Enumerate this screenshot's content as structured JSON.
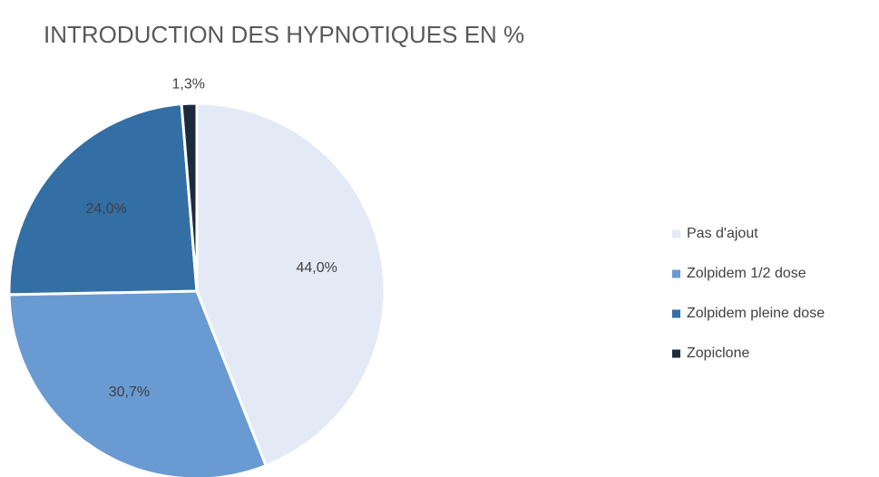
{
  "chart_data": {
    "type": "pie",
    "title": "INTRODUCTION DES HYPNOTIQUES EN %",
    "categories": [
      "Pas d'ajout",
      "Zolpidem 1/2 dose",
      "Zolpidem pleine dose",
      "Zopiclone"
    ],
    "values": [
      44.0,
      30.7,
      24.0,
      1.3
    ],
    "value_labels": [
      "44,0%",
      "30,7%",
      "24,0%",
      "1,3%"
    ],
    "colors": [
      "#e3eaf6",
      "#6a9ad2",
      "#336ea4",
      "#1b2b3c"
    ],
    "legend": "right"
  }
}
